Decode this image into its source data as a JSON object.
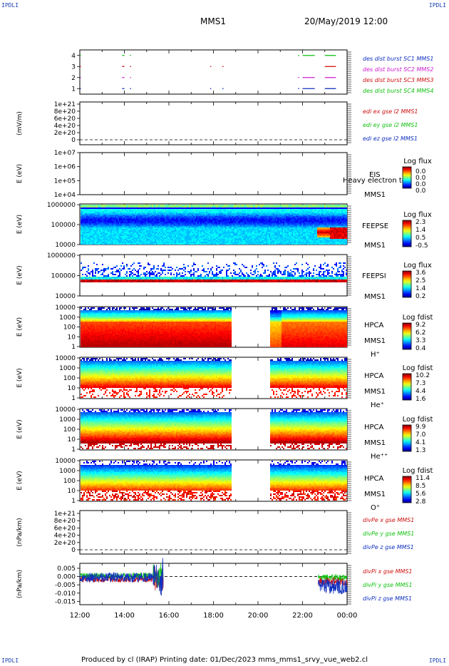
{
  "header": {
    "corner_label": "IPDLI",
    "title": "MMS1",
    "datetime": "20/May/2019 12:00"
  },
  "footer": {
    "text": "Produced by cl (IRAP)   Printing date: 01/Dec/2023   mms_mms1_srvy_vue_web2.cl"
  },
  "colors": {
    "des1": "#1030c0",
    "des2": "#d020d0",
    "des3": "#d01010",
    "des4": "#10c010",
    "x": "#d01010",
    "y": "#10c010",
    "z": "#1030c0"
  },
  "chart_data": {
    "type": "multi-panel",
    "time_axis": {
      "ticks": [
        "12:00",
        "14:00",
        "16:00",
        "18:00",
        "20:00",
        "22:00",
        "00:00"
      ],
      "range": [
        "12:00",
        "00:00"
      ]
    },
    "panels": [
      {
        "id": "burst",
        "type": "timeline",
        "y_ticks": [
          "4",
          "3",
          "2",
          "1"
        ],
        "ylim": [
          0.5,
          4.5
        ],
        "legend": [
          "des dist burst SC1 MMS1",
          "des dist burst SC2 MMS2",
          "des dist burst SC3 MMS3",
          "des dist burst SC4 MMS4"
        ],
        "legend_colors": [
          "#1030c0",
          "#d020d0",
          "#d01010",
          "#10c010"
        ],
        "series": [
          {
            "level": 4,
            "intervals": [
              [
                12.0,
                12.05
              ],
              [
                13.9,
                14.0
              ],
              [
                14.25,
                14.3
              ],
              [
                21.8,
                21.85
              ],
              [
                22.0,
                22.55
              ],
              [
                23.0,
                23.5
              ]
            ]
          },
          {
            "level": 3,
            "intervals": [
              [
                12.0,
                12.05
              ],
              [
                13.9,
                14.0
              ],
              [
                14.25,
                14.3
              ],
              [
                17.85,
                17.9
              ],
              [
                18.4,
                18.45
              ],
              [
                23.0,
                23.5
              ]
            ]
          },
          {
            "level": 2,
            "intervals": [
              [
                12.0,
                12.05
              ],
              [
                13.9,
                14.0
              ],
              [
                14.25,
                14.3
              ],
              [
                21.8,
                21.85
              ],
              [
                22.0,
                22.55
              ],
              [
                23.0,
                23.5
              ]
            ]
          },
          {
            "level": 1,
            "intervals": [
              [
                12.0,
                12.05
              ],
              [
                13.9,
                14.0
              ],
              [
                14.25,
                14.3
              ],
              [
                17.85,
                17.9
              ],
              [
                18.4,
                18.45
              ],
              [
                21.8,
                21.85
              ],
              [
                22.0,
                22.55
              ],
              [
                23.0,
                23.5
              ]
            ]
          }
        ]
      },
      {
        "id": "edi",
        "type": "line",
        "ylabel": "(mV/m)",
        "y_ticks": [
          "1e+21",
          "8e+20",
          "6e+20",
          "4e+20",
          "2e+20",
          "0"
        ],
        "legend": [
          "edi ex gse l2 MMS1",
          "edi ey gse l2 MMS1",
          "edi ez gse l2 MMS1"
        ],
        "legend_colors": [
          "#d01010",
          "#10c010",
          "#1030c0"
        ]
      },
      {
        "id": "eis",
        "type": "heatmap",
        "ylabel": "E (eV)",
        "y_ticks": [
          "1e+07",
          "1e+06",
          "1e+05",
          "1e+04"
        ],
        "labels": [
          "EIS",
          "MMS1"
        ],
        "overlay_text": "Heavy electron to",
        "colorbar": {
          "title": "Log flux",
          "ticks": [
            "0.0",
            "0.0",
            "0.0",
            "0.0"
          ]
        }
      },
      {
        "id": "feepse",
        "type": "heatmap",
        "ylabel": "E (eV)",
        "y_ticks": [
          "1000000",
          "100000",
          "10000"
        ],
        "labels": [
          "FEEPSE",
          "MMS1"
        ],
        "colorbar": {
          "title": "Log flux",
          "ticks": [
            "2.3",
            "1.4",
            "0.5",
            "-0.5"
          ]
        }
      },
      {
        "id": "feepsi",
        "type": "heatmap",
        "ylabel": "E (eV)",
        "y_ticks": [
          "1000000",
          "100000",
          "10000"
        ],
        "labels": [
          "FEEPSI",
          "MMS1"
        ],
        "colorbar": {
          "title": "Log flux",
          "ticks": [
            "3.6",
            "2.5",
            "1.4",
            "0.2"
          ]
        }
      },
      {
        "id": "hpca_h",
        "type": "heatmap",
        "ylabel": "E (eV)",
        "y_ticks": [
          "10000",
          "1000",
          "100",
          "10",
          "1"
        ],
        "labels": [
          "HPCA",
          "MMS1",
          "H⁺"
        ],
        "data_gap": [
          18.8,
          20.5
        ],
        "colorbar": {
          "title": "Log fdist",
          "ticks": [
            "9.2",
            "6.2",
            "3.3",
            "0.4"
          ]
        }
      },
      {
        "id": "hpca_he",
        "type": "heatmap",
        "ylabel": "E (eV)",
        "y_ticks": [
          "10000",
          "1000",
          "100",
          "10",
          "1"
        ],
        "labels": [
          "HPCA",
          "MMS1",
          "He⁺"
        ],
        "data_gap": [
          18.8,
          20.5
        ],
        "colorbar": {
          "title": "Log fdist",
          "ticks": [
            "10.2",
            "7.3",
            "4.4",
            "1.6"
          ]
        }
      },
      {
        "id": "hpca_hepp",
        "type": "heatmap",
        "ylabel": "E (eV)",
        "y_ticks": [
          "10000",
          "1000",
          "100",
          "10",
          "1"
        ],
        "labels": [
          "HPCA",
          "MMS1",
          "He⁺⁺"
        ],
        "data_gap": [
          18.8,
          20.5
        ],
        "colorbar": {
          "title": "Log fdist",
          "ticks": [
            "9.9",
            "7.0",
            "4.1",
            "1.3"
          ]
        }
      },
      {
        "id": "hpca_o",
        "type": "heatmap",
        "ylabel": "E (eV)",
        "y_ticks": [
          "10000",
          "1000",
          "100",
          "10",
          "1"
        ],
        "labels": [
          "HPCA",
          "MMS1",
          "O⁺"
        ],
        "data_gap": [
          18.8,
          20.5
        ],
        "colorbar": {
          "title": "Log fdist",
          "ticks": [
            "11.4",
            "8.5",
            "5.6",
            "2.8"
          ]
        }
      },
      {
        "id": "divpe",
        "type": "line",
        "ylabel": "(nPa/km)",
        "y_ticks": [
          "1e+21",
          "8e+20",
          "6e+20",
          "4e+20",
          "2e+20",
          "0"
        ],
        "legend": [
          "divPe x gse MMS1",
          "divPe y gse MMS1",
          "divPe z gse MMS1"
        ],
        "legend_colors": [
          "#d01010",
          "#10c010",
          "#1030c0"
        ]
      },
      {
        "id": "divpi",
        "type": "line",
        "ylabel": "(nPa/km)",
        "y_ticks": [
          "0.005",
          "0.000",
          "-0.005",
          "-0.010",
          "-0.015"
        ],
        "ylim": [
          -0.017,
          0.008
        ],
        "legend": [
          "divPi x gse MMS1",
          "divPi y gse MMS1",
          "divPi z gse MMS1"
        ],
        "legend_colors": [
          "#d01010",
          "#10c010",
          "#1030c0"
        ]
      }
    ]
  }
}
